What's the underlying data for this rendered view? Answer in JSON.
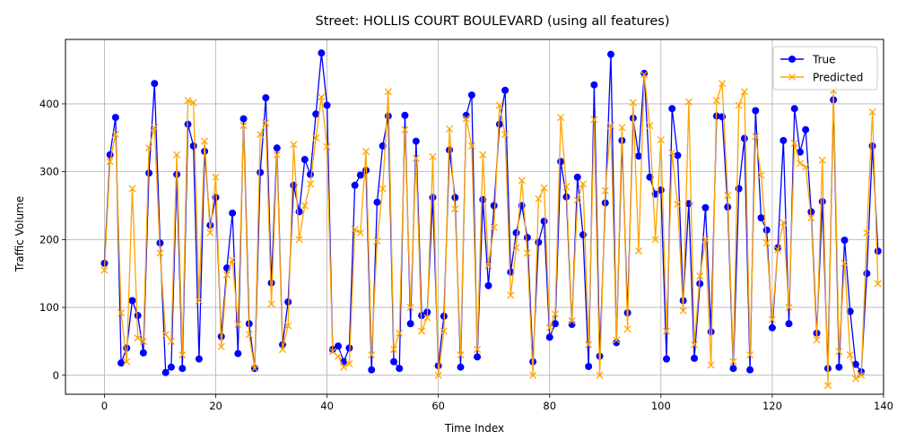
{
  "chart_data": {
    "type": "line",
    "title": "Street: HOLLIS COURT BOULEVARD (using all features)",
    "xlabel": "Time Index",
    "ylabel": "Traffic Volume",
    "xlim": [
      -7,
      140
    ],
    "ylim": [
      -28,
      495
    ],
    "xticks": [
      0,
      20,
      40,
      60,
      80,
      100,
      120,
      140
    ],
    "yticks": [
      0,
      100,
      200,
      300,
      400
    ],
    "grid": true,
    "legend": "top-right",
    "series": [
      {
        "name": "True",
        "color": "#0000ff",
        "marker": "circle",
        "values": [
          165,
          325,
          380,
          18,
          40,
          110,
          88,
          33,
          298,
          430,
          195,
          4,
          12,
          296,
          10,
          370,
          338,
          24,
          330,
          221,
          262,
          57,
          158,
          239,
          32,
          378,
          76,
          10,
          299,
          409,
          136,
          335,
          45,
          108,
          280,
          241,
          318,
          296,
          385,
          475,
          398,
          38,
          43,
          20,
          40,
          280,
          295,
          302,
          8,
          255,
          338,
          382,
          20,
          10,
          383,
          76,
          345,
          88,
          93,
          262,
          14,
          87,
          332,
          262,
          12,
          383,
          413,
          27,
          259,
          132,
          250,
          370,
          420,
          152,
          210,
          250,
          203,
          20,
          196,
          227,
          56,
          76,
          315,
          263,
          75,
          292,
          207,
          13,
          428,
          28,
          254,
          473,
          48,
          346,
          92,
          379,
          323,
          445,
          292,
          267,
          273,
          24,
          393,
          324,
          110,
          253,
          25,
          135,
          247,
          64,
          382,
          381,
          248,
          10,
          275,
          349,
          8,
          390,
          232,
          214,
          70,
          188,
          346,
          76,
          393,
          329,
          362,
          241,
          62,
          256,
          10,
          406,
          12,
          199,
          94,
          16,
          5,
          150,
          338,
          183
        ]
      },
      {
        "name": "Predicted",
        "color": "#ffa500",
        "marker": "x",
        "values": [
          155,
          315,
          355,
          92,
          20,
          275,
          55,
          50,
          335,
          365,
          180,
          60,
          50,
          325,
          30,
          405,
          402,
          110,
          345,
          210,
          292,
          42,
          148,
          170,
          75,
          368,
          60,
          10,
          355,
          372,
          105,
          325,
          38,
          73,
          340,
          200,
          250,
          282,
          350,
          410,
          337,
          35,
          28,
          12,
          17,
          215,
          210,
          330,
          30,
          198,
          275,
          418,
          38,
          62,
          362,
          100,
          320,
          65,
          85,
          322,
          0,
          65,
          363,
          245,
          30,
          378,
          338,
          38,
          325,
          162,
          218,
          398,
          355,
          118,
          188,
          287,
          180,
          0,
          260,
          276,
          70,
          90,
          380,
          278,
          80,
          258,
          282,
          45,
          377,
          0,
          272,
          368,
          52,
          365,
          68,
          402,
          183,
          443,
          368,
          200,
          347,
          65,
          328,
          252,
          95,
          403,
          45,
          146,
          200,
          15,
          405,
          430,
          265,
          20,
          398,
          418,
          30,
          352,
          295,
          195,
          82,
          185,
          225,
          100,
          342,
          312,
          307,
          232,
          52,
          317,
          -15,
          420,
          35,
          165,
          30,
          -5,
          0,
          210,
          388,
          135
        ]
      }
    ]
  }
}
